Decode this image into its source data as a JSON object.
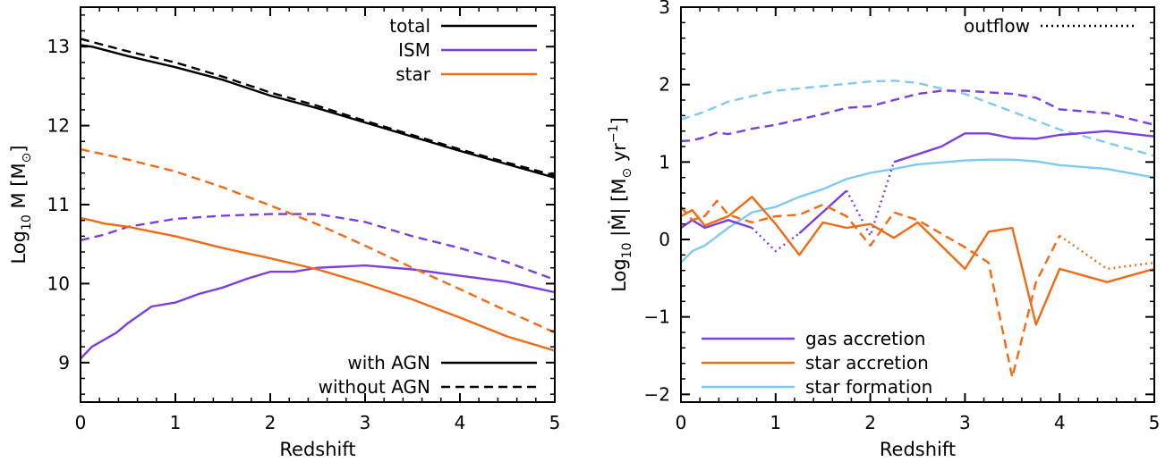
{
  "chart_data": [
    {
      "type": "line",
      "panel": "left",
      "xlabel": "Redshift",
      "ylabel_parts": [
        "Log",
        "10",
        " M [M",
        "⊙",
        "]"
      ],
      "xlim": [
        0,
        5
      ],
      "ylim": [
        8.5,
        13.5
      ],
      "xticks": [
        0,
        1,
        2,
        3,
        4,
        5
      ],
      "yticks": [
        9,
        10,
        11,
        12,
        13
      ],
      "grid": false,
      "legend_top": {
        "placement": "top-right",
        "entries": [
          {
            "label": "total",
            "color": "#000000"
          },
          {
            "label": "ISM",
            "color": "#7b3fe0"
          },
          {
            "label": "star",
            "color": "#f26a13"
          }
        ]
      },
      "legend_bottom": {
        "placement": "bottom-right",
        "entries": [
          {
            "label": "with AGN",
            "dash": "solid"
          },
          {
            "label": "without AGN",
            "dash": "dashed"
          }
        ]
      },
      "series": [
        {
          "component": "total",
          "agn": "with",
          "color": "#000000",
          "dash": "solid",
          "x": [
            0,
            0.12,
            0.5,
            1,
            1.5,
            2,
            2.5,
            3,
            3.5,
            4,
            4.5,
            5
          ],
          "y": [
            13.02,
            13.0,
            12.88,
            12.74,
            12.58,
            12.38,
            12.22,
            12.04,
            11.86,
            11.68,
            11.51,
            11.34
          ]
        },
        {
          "component": "total",
          "agn": "without",
          "color": "#000000",
          "dash": "dashed",
          "x": [
            0,
            0.12,
            0.5,
            1,
            1.5,
            2,
            2.5,
            3,
            3.5,
            4,
            4.5,
            5
          ],
          "y": [
            13.1,
            13.06,
            12.94,
            12.8,
            12.62,
            12.42,
            12.25,
            12.06,
            11.88,
            11.7,
            11.53,
            11.37
          ]
        },
        {
          "component": "ISM",
          "agn": "with",
          "color": "#7b3fe0",
          "dash": "solid",
          "x": [
            0,
            0.12,
            0.38,
            0.5,
            0.75,
            1,
            1.25,
            1.5,
            1.75,
            2,
            2.25,
            2.5,
            3,
            3.5,
            4,
            4.5,
            5
          ],
          "y": [
            9.05,
            9.2,
            9.38,
            9.5,
            9.71,
            9.76,
            9.87,
            9.95,
            10.06,
            10.15,
            10.15,
            10.2,
            10.23,
            10.18,
            10.1,
            10.02,
            9.89
          ]
        },
        {
          "component": "ISM",
          "agn": "without",
          "color": "#7b3fe0",
          "dash": "dashed",
          "x": [
            0,
            0.25,
            0.5,
            1,
            1.5,
            2,
            2.5,
            3,
            3.5,
            4,
            4.5,
            5
          ],
          "y": [
            10.55,
            10.62,
            10.72,
            10.82,
            10.86,
            10.88,
            10.88,
            10.78,
            10.6,
            10.45,
            10.27,
            10.05
          ]
        },
        {
          "component": "star",
          "agn": "with",
          "color": "#f26a13",
          "dash": "solid",
          "x": [
            0,
            0.12,
            0.25,
            0.5,
            1,
            1.5,
            2,
            2.5,
            3,
            3.5,
            4,
            4.5,
            5
          ],
          "y": [
            10.83,
            10.8,
            10.76,
            10.72,
            10.6,
            10.45,
            10.32,
            10.18,
            10.0,
            9.8,
            9.57,
            9.33,
            9.15
          ]
        },
        {
          "component": "star",
          "agn": "without",
          "color": "#f26a13",
          "dash": "dashed",
          "x": [
            0,
            0.12,
            0.5,
            1,
            1.5,
            2,
            2.5,
            3,
            3.5,
            4,
            4.5,
            5
          ],
          "y": [
            11.7,
            11.67,
            11.57,
            11.42,
            11.22,
            10.99,
            10.75,
            10.48,
            10.2,
            9.93,
            9.65,
            9.38
          ]
        }
      ]
    },
    {
      "type": "line",
      "panel": "right",
      "xlabel": "Redshift",
      "ylabel_parts": [
        "Log",
        "10",
        " |Ṁ| [M",
        "⊙",
        " yr",
        "−1",
        "]"
      ],
      "xlim": [
        0,
        5
      ],
      "ylim": [
        -2.1,
        3.0
      ],
      "xticks": [
        0,
        1,
        2,
        3,
        4,
        5
      ],
      "yticks": [
        -2,
        -1,
        0,
        1,
        2,
        3
      ],
      "grid": false,
      "legend_top": {
        "placement": "top-right",
        "entries": [
          {
            "label": "outflow",
            "dash": "dotted"
          }
        ]
      },
      "legend_bottom": {
        "placement": "bottom-left",
        "entries": [
          {
            "label": "gas accretion",
            "color": "#7b3fe0"
          },
          {
            "label": "star accretion",
            "color": "#f26a13"
          },
          {
            "label": "star formation",
            "color": "#7ecbf2"
          }
        ]
      },
      "series": [
        {
          "component": "star formation",
          "agn": "with",
          "color": "#7ecbf2",
          "dash": "solid",
          "x": [
            0,
            0.12,
            0.25,
            0.5,
            0.75,
            1,
            1.25,
            1.5,
            1.75,
            2,
            2.25,
            2.5,
            3,
            3.25,
            3.5,
            3.75,
            4,
            4.5,
            5
          ],
          "y": [
            -0.3,
            -0.15,
            -0.08,
            0.15,
            0.35,
            0.42,
            0.55,
            0.65,
            0.78,
            0.86,
            0.91,
            0.97,
            1.02,
            1.03,
            1.03,
            1.01,
            0.96,
            0.91,
            0.8
          ]
        },
        {
          "component": "star formation",
          "agn": "without",
          "color": "#7ecbf2",
          "dash": "dashed",
          "x": [
            0,
            0.25,
            0.5,
            1,
            1.5,
            2,
            2.25,
            2.5,
            3,
            3.5,
            4,
            4.5,
            5
          ],
          "y": [
            1.55,
            1.65,
            1.78,
            1.92,
            1.98,
            2.04,
            2.05,
            2.02,
            1.88,
            1.65,
            1.42,
            1.25,
            1.08
          ]
        },
        {
          "component": "gas accretion",
          "agn": "without",
          "color": "#7b3fe0",
          "dash": "dashed",
          "x": [
            0,
            0.12,
            0.25,
            0.38,
            0.5,
            0.75,
            1,
            1.25,
            1.5,
            1.75,
            2,
            2.25,
            2.5,
            2.75,
            3,
            3.25,
            3.5,
            3.75,
            4,
            4.5,
            5
          ],
          "y": [
            1.27,
            1.28,
            1.32,
            1.38,
            1.36,
            1.43,
            1.48,
            1.55,
            1.62,
            1.7,
            1.72,
            1.8,
            1.88,
            1.92,
            1.92,
            1.9,
            1.88,
            1.83,
            1.68,
            1.63,
            1.48
          ]
        },
        {
          "component": "gas accretion",
          "agn": "with",
          "color": "#7b3fe0",
          "dash": "solid",
          "x": [
            0,
            0.12,
            0.25,
            0.5,
            0.75
          ],
          "y": [
            0.15,
            0.25,
            0.15,
            0.25,
            0.15
          ]
        },
        {
          "component": "gas accretion",
          "agn": "with",
          "color": "#7b3fe0",
          "dash": "solid",
          "x": [
            1.25,
            1.75
          ],
          "y": [
            0.08,
            0.63
          ]
        },
        {
          "component": "gas accretion",
          "agn": "with",
          "color": "#7b3fe0",
          "dash": "solid",
          "x": [
            2.25,
            2.5,
            2.75,
            3,
            3.25,
            3.5,
            3.75,
            4,
            4.5,
            5
          ],
          "y": [
            1.0,
            1.1,
            1.2,
            1.37,
            1.37,
            1.31,
            1.3,
            1.35,
            1.4,
            1.33
          ]
        },
        {
          "component": "gas outflow",
          "agn": "with",
          "color": "#7b3fe0",
          "dash": "dotted",
          "x": [
            0.75,
            1,
            1.25
          ],
          "y": [
            0.15,
            -0.15,
            0.08
          ]
        },
        {
          "component": "gas outflow",
          "agn": "with",
          "color": "#7b3fe0",
          "dash": "dotted",
          "x": [
            1.75,
            2,
            2.25
          ],
          "y": [
            0.63,
            0.05,
            1.0
          ]
        },
        {
          "component": "star accretion",
          "agn": "with",
          "color": "#f26a13",
          "dash": "solid",
          "x": [
            0,
            0.12,
            0.25,
            0.5,
            0.75,
            1,
            1.25,
            1.5,
            1.75,
            2,
            2.25,
            2.5,
            3,
            3.25,
            3.5,
            3.75,
            4,
            4.5,
            5
          ],
          "y": [
            0.3,
            0.38,
            0.18,
            0.3,
            0.55,
            0.2,
            -0.2,
            0.22,
            0.15,
            0.2,
            0.02,
            0.22,
            -0.38,
            0.1,
            0.15,
            -1.1,
            -0.38,
            -0.55,
            -0.38
          ]
        },
        {
          "component": "star accretion",
          "agn": "without",
          "color": "#f26a13",
          "dash": "dashed",
          "x": [
            0,
            0.12,
            0.25,
            0.38,
            0.5,
            0.75,
            1,
            1.25,
            1.5,
            1.75,
            2,
            2.25,
            2.5,
            3,
            3.25,
            3.5,
            3.75,
            4
          ],
          "y": [
            0.42,
            0.25,
            0.3,
            0.5,
            0.32,
            0.22,
            0.3,
            0.32,
            0.45,
            0.3,
            -0.08,
            0.35,
            0.25,
            -0.1,
            -0.3,
            -1.78,
            -0.55,
            0.05
          ]
        },
        {
          "component": "star outflow",
          "agn": "without",
          "color": "#f26a13",
          "dash": "dotted",
          "x": [
            4,
            4.5,
            5
          ],
          "y": [
            0.05,
            -0.38,
            -0.3
          ]
        }
      ]
    }
  ]
}
